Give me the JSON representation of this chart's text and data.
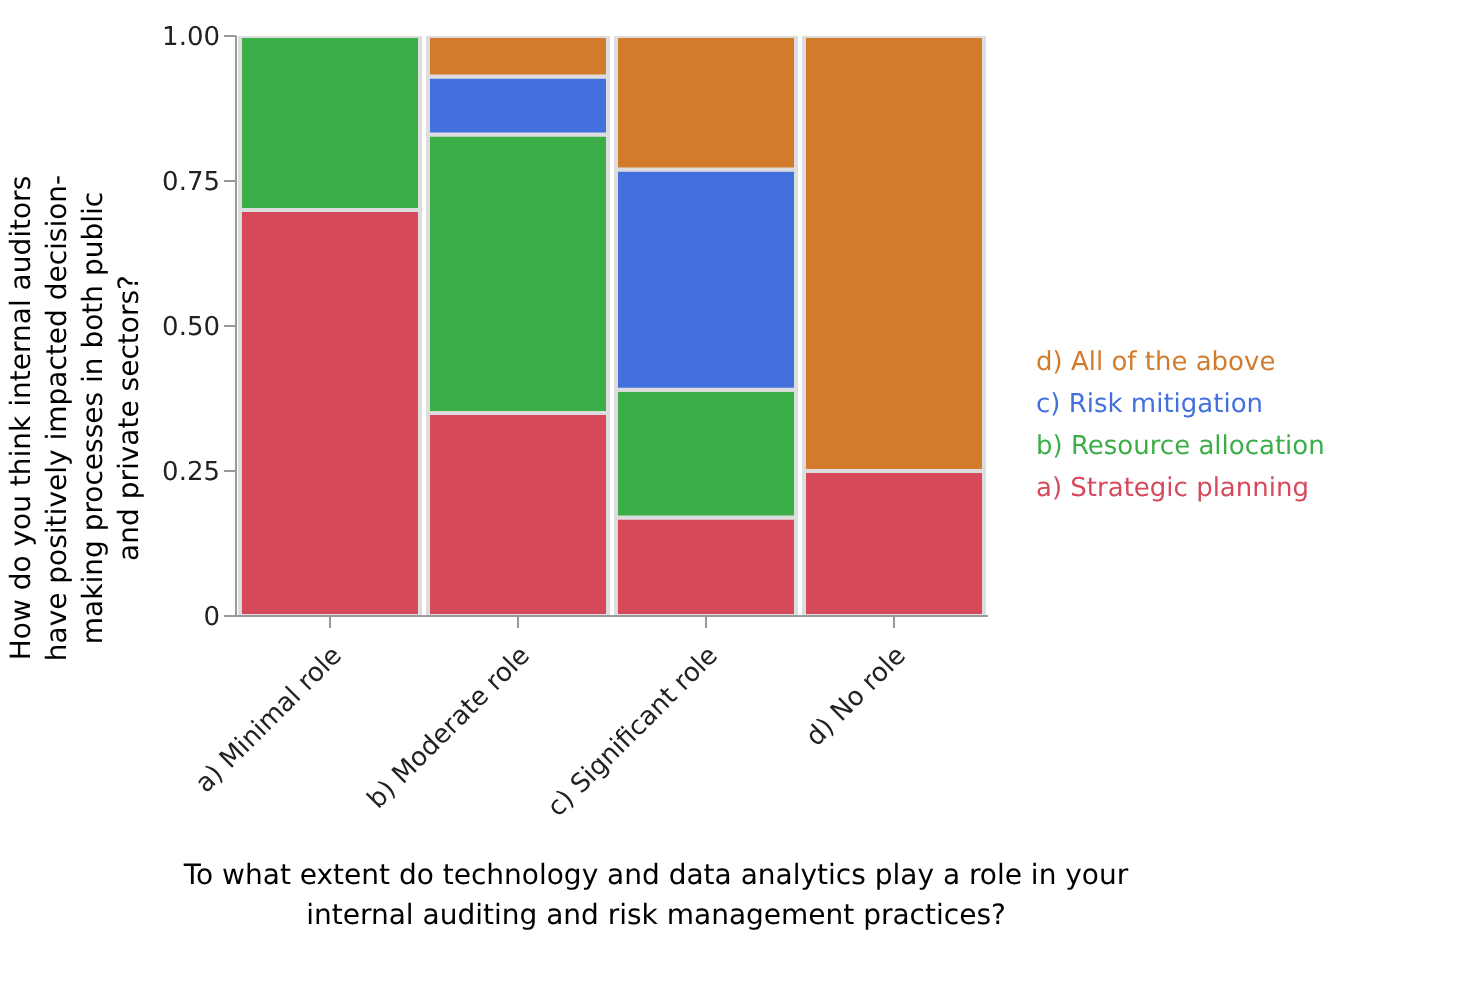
{
  "chart_data": {
    "type": "bar",
    "stacked": true,
    "xlabel": "To what extent do technology and data analytics play a role in your internal auditing and risk management practices?",
    "ylabel": "How do you think internal auditors have positively impacted decision-making processes in both public and private sectors?",
    "categories": [
      "a) Minimal role",
      "b) Moderate role",
      "c) Significant role",
      "d) No role"
    ],
    "series": [
      {
        "name": "a) Strategic planning",
        "color": "#d6495a",
        "values": [
          0.7,
          0.35,
          0.17,
          0.25
        ]
      },
      {
        "name": "b) Resource allocation",
        "color": "#3cae47",
        "values": [
          0.3,
          0.48,
          0.22,
          0
        ]
      },
      {
        "name": "c) Risk mitigation",
        "color": "#4470dd",
        "values": [
          0,
          0.1,
          0.38,
          0
        ]
      },
      {
        "name": "d) All of the above",
        "color": "#d27b2d",
        "values": [
          0,
          0.07,
          0.23,
          0.75
        ]
      }
    ],
    "ylim": [
      0,
      1
    ],
    "yticks": [
      0,
      {
        "value": 0.25,
        "label": "0.25"
      },
      {
        "value": 0.5,
        "label": "0.50"
      },
      {
        "value": 0.75,
        "label": "0.75"
      },
      {
        "value": 1,
        "label": "1.00"
      }
    ],
    "legend": "right",
    "grid": false
  }
}
